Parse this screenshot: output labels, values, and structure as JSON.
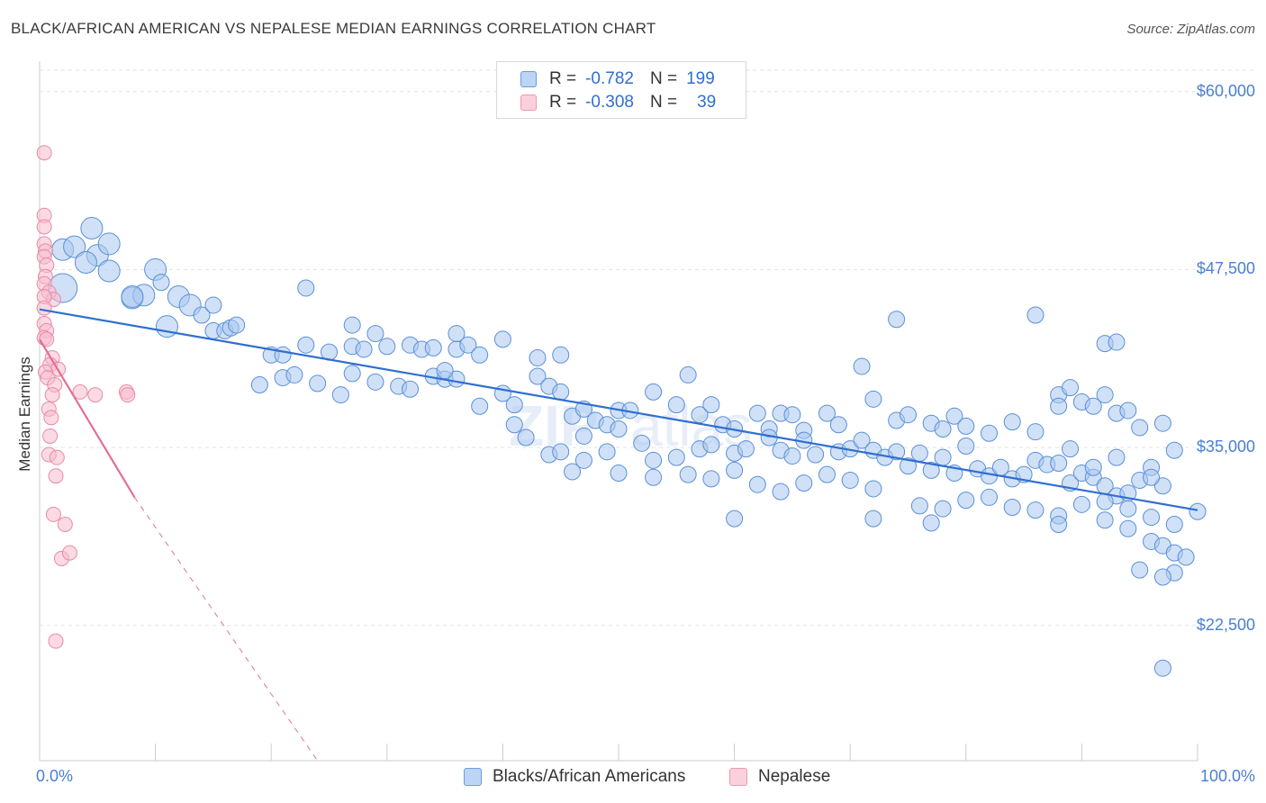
{
  "title": "BLACK/AFRICAN AMERICAN VS NEPALESE MEDIAN EARNINGS CORRELATION CHART",
  "source": "Source: ZipAtlas.com",
  "colors": {
    "blue_fill": "#a9c8f0",
    "blue_stroke": "#5a8fd8",
    "blue_line": "#2f6fd0",
    "pink_fill": "#f7bccd",
    "pink_stroke": "#e88aa6",
    "pink_line": "#e0709a",
    "tick_text": "#4a7fd4",
    "grid": "#e3e3e3"
  },
  "legend": {
    "rows": [
      {
        "r_label": "R =",
        "r_value": "-0.782",
        "n_label": "N =",
        "n_value": "199"
      },
      {
        "r_label": "R =",
        "r_value": "-0.308",
        "n_label": "N =",
        "n_value": "39"
      }
    ]
  },
  "bottom_legend": [
    "Blacks/African Americans",
    "Nepalese"
  ],
  "chart_data": {
    "type": "scatter",
    "ylabel": "Median Earnings",
    "xlabel": "",
    "xlim": [
      0,
      100
    ],
    "ylim": [
      13000,
      61500
    ],
    "x_tick_labels": [
      "0.0%",
      "100.0%"
    ],
    "y_ticks": [
      22500,
      35000,
      47500,
      60000
    ],
    "y_tick_labels": [
      "$22,500",
      "$35,000",
      "$47,500",
      "$60,000"
    ],
    "grid": true,
    "series": [
      {
        "name": "Blacks/African Americans",
        "trend": {
          "x0": 0,
          "y0": 44700,
          "x1": 100,
          "y1": 30600
        },
        "points": [
          [
            2,
            46200,
            3
          ],
          [
            2,
            48900,
            2
          ],
          [
            4.5,
            50400,
            2
          ],
          [
            3,
            49100,
            2
          ],
          [
            5,
            48500,
            2
          ],
          [
            4,
            48000,
            2
          ],
          [
            6,
            47400,
            2
          ],
          [
            6,
            49300,
            2
          ],
          [
            8,
            45500,
            2
          ],
          [
            9,
            45700,
            2
          ],
          [
            8,
            45600,
            2
          ],
          [
            10,
            47500,
            2
          ],
          [
            12,
            45600,
            2
          ],
          [
            11,
            43500,
            2
          ],
          [
            13,
            45000,
            2
          ],
          [
            10.5,
            46600,
            1
          ],
          [
            14,
            44300,
            1
          ],
          [
            15,
            45000,
            1
          ],
          [
            15,
            43200,
            1
          ],
          [
            16,
            43200,
            1
          ],
          [
            16.5,
            43400,
            1
          ],
          [
            17,
            43600,
            1
          ],
          [
            23,
            46200,
            1
          ],
          [
            20,
            41500,
            1
          ],
          [
            21,
            41500,
            1
          ],
          [
            23,
            42200,
            1
          ],
          [
            25,
            41700,
            1
          ],
          [
            27,
            42100,
            1
          ],
          [
            28,
            41900,
            1
          ],
          [
            30,
            42100,
            1
          ],
          [
            32,
            42200,
            1
          ],
          [
            33,
            41900,
            1
          ],
          [
            34,
            42000,
            1
          ],
          [
            36,
            41900,
            1
          ],
          [
            37,
            42200,
            1
          ],
          [
            38,
            41500,
            1
          ],
          [
            40,
            42600,
            1
          ],
          [
            43,
            41300,
            1
          ],
          [
            27,
            43600,
            1
          ],
          [
            29,
            43000,
            1
          ],
          [
            36,
            43000,
            1
          ],
          [
            19,
            39400,
            1
          ],
          [
            21,
            39900,
            1
          ],
          [
            22,
            40100,
            1
          ],
          [
            24,
            39500,
            1
          ],
          [
            26,
            38700,
            1
          ],
          [
            27,
            40200,
            1
          ],
          [
            29,
            39600,
            1
          ],
          [
            31,
            39300,
            1
          ],
          [
            32,
            39100,
            1
          ],
          [
            34,
            40000,
            1
          ],
          [
            35,
            39800,
            1
          ],
          [
            36,
            39800,
            1
          ],
          [
            38,
            37900,
            1
          ],
          [
            40,
            38800,
            1
          ],
          [
            41,
            38000,
            1
          ],
          [
            43,
            40000,
            1
          ],
          [
            44,
            39300,
            1
          ],
          [
            45,
            38900,
            1
          ],
          [
            46,
            37200,
            1
          ],
          [
            47,
            37700,
            1
          ],
          [
            48,
            36900,
            1
          ],
          [
            49,
            36600,
            1
          ],
          [
            50,
            37600,
            1
          ],
          [
            51,
            37600,
            1
          ],
          [
            53,
            38900,
            1
          ],
          [
            55,
            38000,
            1
          ],
          [
            56,
            40100,
            1
          ],
          [
            57,
            37300,
            1
          ],
          [
            58,
            38000,
            1
          ],
          [
            59,
            36600,
            1
          ],
          [
            60,
            36300,
            1
          ],
          [
            62,
            37400,
            1
          ],
          [
            63,
            36300,
            1
          ],
          [
            64,
            37400,
            1
          ],
          [
            65,
            37300,
            1
          ],
          [
            66,
            36200,
            1
          ],
          [
            68,
            37400,
            1
          ],
          [
            69,
            36600,
            1
          ],
          [
            71,
            40700,
            1
          ],
          [
            72,
            38400,
            1
          ],
          [
            74,
            36900,
            1
          ],
          [
            75,
            37300,
            1
          ],
          [
            77,
            36700,
            1
          ],
          [
            78,
            36300,
            1
          ],
          [
            79,
            37200,
            1
          ],
          [
            80,
            36500,
            1
          ],
          [
            82,
            36000,
            1
          ],
          [
            84,
            36800,
            1
          ],
          [
            86,
            36100,
            1
          ],
          [
            88,
            38700,
            1
          ],
          [
            89,
            39200,
            1
          ],
          [
            90,
            38200,
            1
          ],
          [
            91,
            37900,
            1
          ],
          [
            92,
            38700,
            1
          ],
          [
            93,
            37400,
            1
          ],
          [
            94,
            37600,
            1
          ],
          [
            95,
            36400,
            1
          ],
          [
            97,
            36700,
            1
          ],
          [
            74,
            44000,
            1
          ],
          [
            86,
            44300,
            1
          ],
          [
            92,
            42300,
            1
          ],
          [
            93,
            42400,
            1
          ],
          [
            88,
            37900,
            1
          ],
          [
            45,
            41500,
            1
          ],
          [
            35,
            40400,
            1
          ],
          [
            41,
            36600,
            1
          ],
          [
            42,
            35700,
            1
          ],
          [
            44,
            34500,
            1
          ],
          [
            45,
            34700,
            1
          ],
          [
            47,
            35800,
            1
          ],
          [
            49,
            34700,
            1
          ],
          [
            50,
            36300,
            1
          ],
          [
            52,
            35300,
            1
          ],
          [
            53,
            34100,
            1
          ],
          [
            55,
            34300,
            1
          ],
          [
            57,
            34900,
            1
          ],
          [
            58,
            35200,
            1
          ],
          [
            60,
            34600,
            1
          ],
          [
            61,
            34900,
            1
          ],
          [
            63,
            35700,
            1
          ],
          [
            64,
            34800,
            1
          ],
          [
            65,
            34400,
            1
          ],
          [
            66,
            35500,
            1
          ],
          [
            67,
            34500,
            1
          ],
          [
            69,
            34700,
            1
          ],
          [
            70,
            34900,
            1
          ],
          [
            71,
            35500,
            1
          ],
          [
            72,
            34800,
            1
          ],
          [
            73,
            34300,
            1
          ],
          [
            74,
            34700,
            1
          ],
          [
            75,
            33700,
            1
          ],
          [
            76,
            34600,
            1
          ],
          [
            77,
            33400,
            1
          ],
          [
            78,
            34300,
            1
          ],
          [
            79,
            33200,
            1
          ],
          [
            80,
            35100,
            1
          ],
          [
            81,
            33500,
            1
          ],
          [
            82,
            33000,
            1
          ],
          [
            83,
            33600,
            1
          ],
          [
            84,
            32800,
            1
          ],
          [
            85,
            33100,
            1
          ],
          [
            86,
            34100,
            1
          ],
          [
            87,
            33800,
            1
          ],
          [
            88,
            33900,
            1
          ],
          [
            89,
            32500,
            1
          ],
          [
            90,
            33200,
            1
          ],
          [
            91,
            32900,
            1
          ],
          [
            92,
            32300,
            1
          ],
          [
            93,
            31600,
            1
          ],
          [
            94,
            31800,
            1
          ],
          [
            95,
            32700,
            1
          ],
          [
            96,
            33600,
            1
          ],
          [
            97,
            32300,
            1
          ],
          [
            46,
            33300,
            1
          ],
          [
            47,
            34100,
            1
          ],
          [
            50,
            33200,
            1
          ],
          [
            53,
            32900,
            1
          ],
          [
            56,
            33100,
            1
          ],
          [
            58,
            32800,
            1
          ],
          [
            60,
            33400,
            1
          ],
          [
            62,
            32400,
            1
          ],
          [
            64,
            31900,
            1
          ],
          [
            66,
            32500,
            1
          ],
          [
            68,
            33100,
            1
          ],
          [
            70,
            32700,
            1
          ],
          [
            72,
            32100,
            1
          ],
          [
            76,
            30900,
            1
          ],
          [
            78,
            30700,
            1
          ],
          [
            80,
            31300,
            1
          ],
          [
            82,
            31500,
            1
          ],
          [
            84,
            30800,
            1
          ],
          [
            86,
            30600,
            1
          ],
          [
            88,
            30200,
            1
          ],
          [
            90,
            31000,
            1
          ],
          [
            92,
            31200,
            1
          ],
          [
            94,
            30700,
            1
          ],
          [
            96,
            30100,
            1
          ],
          [
            98,
            29600,
            1
          ],
          [
            60,
            30000,
            1
          ],
          [
            72,
            30000,
            1
          ],
          [
            77,
            29700,
            1
          ],
          [
            88,
            29600,
            1
          ],
          [
            92,
            29900,
            1
          ],
          [
            94,
            29300,
            1
          ],
          [
            96,
            28400,
            1
          ],
          [
            97,
            28100,
            1
          ],
          [
            98,
            27600,
            1
          ],
          [
            99,
            27300,
            1
          ],
          [
            95,
            26400,
            1
          ],
          [
            98,
            26200,
            1
          ],
          [
            97,
            25900,
            1
          ],
          [
            97,
            19500,
            1
          ],
          [
            100,
            30500,
            1
          ],
          [
            98,
            34800,
            1
          ],
          [
            96,
            32900,
            1
          ],
          [
            93,
            34300,
            1
          ],
          [
            91,
            33600,
            1
          ],
          [
            89,
            34900,
            1
          ]
        ]
      },
      {
        "name": "Nepalese",
        "trend": {
          "x0": 0,
          "y0": 42600,
          "x1": 8.2,
          "y1": 31500,
          "dash_to_x": 24,
          "dash_to_y": 13000
        },
        "points": [
          [
            0.4,
            55700
          ],
          [
            0.4,
            51300
          ],
          [
            0.4,
            50500
          ],
          [
            0.4,
            49300
          ],
          [
            0.5,
            48800
          ],
          [
            0.4,
            48400
          ],
          [
            0.6,
            47800
          ],
          [
            0.5,
            47000
          ],
          [
            0.4,
            46500
          ],
          [
            0.8,
            45900
          ],
          [
            1.2,
            45400
          ],
          [
            0.4,
            45600
          ],
          [
            0.4,
            44800
          ],
          [
            0.4,
            43700
          ],
          [
            0.6,
            43200
          ],
          [
            0.4,
            42700
          ],
          [
            1.1,
            41300
          ],
          [
            0.9,
            40800
          ],
          [
            1.6,
            40500
          ],
          [
            0.5,
            40300
          ],
          [
            0.7,
            39900
          ],
          [
            1.3,
            39400
          ],
          [
            1.1,
            38700
          ],
          [
            3.5,
            38900
          ],
          [
            4.8,
            38700
          ],
          [
            7.5,
            38900
          ],
          [
            7.6,
            38700
          ],
          [
            0.8,
            37700
          ],
          [
            1.0,
            37100
          ],
          [
            0.9,
            35800
          ],
          [
            0.8,
            34500
          ],
          [
            1.5,
            34300
          ],
          [
            1.4,
            33000
          ],
          [
            1.2,
            30300
          ],
          [
            2.2,
            29600
          ],
          [
            1.9,
            27200
          ],
          [
            2.6,
            27600
          ],
          [
            1.4,
            21400
          ],
          [
            0.6,
            42600
          ]
        ]
      }
    ]
  }
}
